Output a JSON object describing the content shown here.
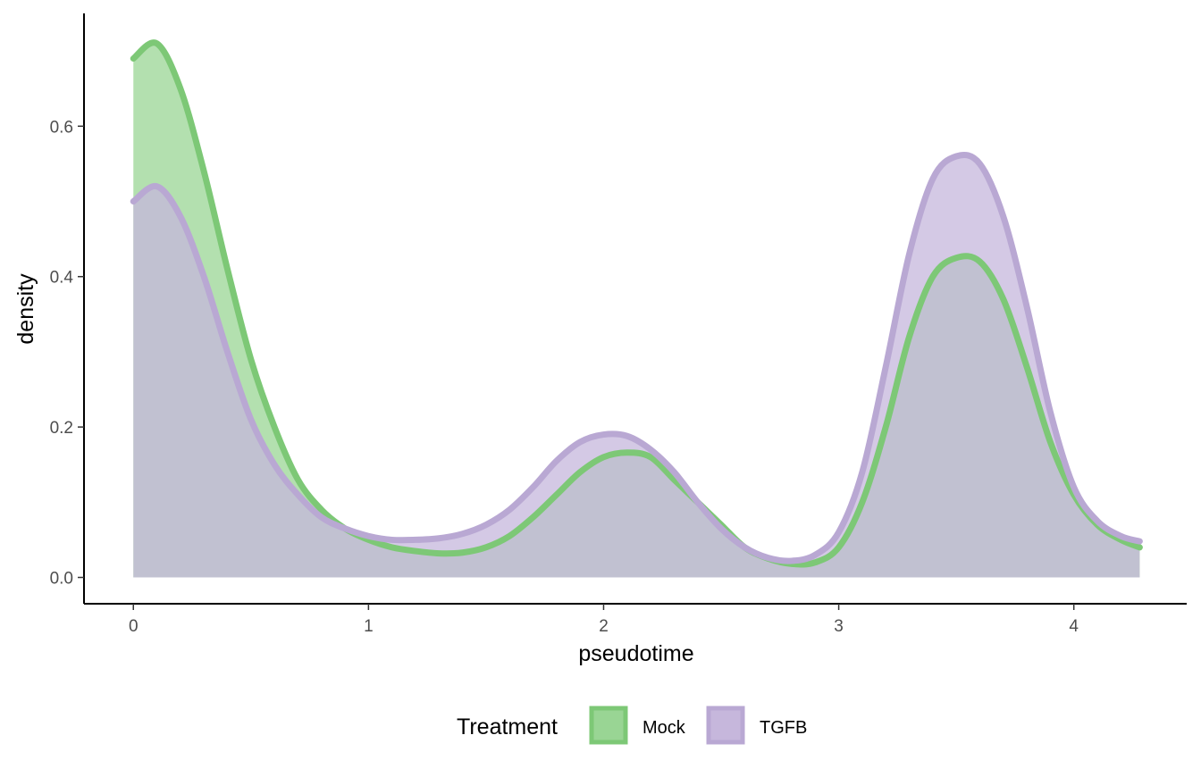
{
  "chart_data": {
    "type": "area",
    "subtype": "density",
    "xlabel": "pseudotime",
    "ylabel": "density",
    "xlim": [
      -0.21,
      4.48
    ],
    "ylim": [
      -0.035,
      0.75
    ],
    "x_ticks": [
      0,
      1,
      2,
      3,
      4
    ],
    "x_tick_labels": [
      "0",
      "1",
      "2",
      "3",
      "4"
    ],
    "y_ticks": [
      0.0,
      0.2,
      0.4,
      0.6
    ],
    "y_tick_labels": [
      "0.0",
      "0.2",
      "0.4",
      "0.6"
    ],
    "grid": false,
    "legend": {
      "title": "Treatment",
      "position": "bottom"
    },
    "series": [
      {
        "name": "Mock",
        "fill": "#99d594",
        "line": "#7dc876",
        "x": [
          0,
          0.1,
          0.2,
          0.3,
          0.4,
          0.5,
          0.6,
          0.7,
          0.8,
          0.9,
          1.0,
          1.1,
          1.2,
          1.3,
          1.4,
          1.5,
          1.6,
          1.7,
          1.8,
          1.9,
          2.0,
          2.1,
          2.2,
          2.3,
          2.4,
          2.5,
          2.6,
          2.7,
          2.8,
          2.9,
          3.0,
          3.1,
          3.2,
          3.3,
          3.4,
          3.5,
          3.6,
          3.7,
          3.8,
          3.9,
          4.0,
          4.1,
          4.2,
          4.28
        ],
        "y": [
          0.69,
          0.71,
          0.65,
          0.54,
          0.41,
          0.29,
          0.2,
          0.13,
          0.09,
          0.065,
          0.05,
          0.04,
          0.035,
          0.032,
          0.033,
          0.04,
          0.055,
          0.08,
          0.11,
          0.14,
          0.16,
          0.166,
          0.16,
          0.13,
          0.1,
          0.07,
          0.04,
          0.025,
          0.018,
          0.02,
          0.04,
          0.1,
          0.2,
          0.32,
          0.4,
          0.425,
          0.42,
          0.37,
          0.28,
          0.18,
          0.11,
          0.07,
          0.05,
          0.04
        ]
      },
      {
        "name": "TGFB",
        "fill": "#c6b7dc",
        "line": "#b9a8d3",
        "x": [
          0,
          0.1,
          0.2,
          0.3,
          0.4,
          0.5,
          0.6,
          0.7,
          0.8,
          0.9,
          1.0,
          1.1,
          1.2,
          1.3,
          1.4,
          1.5,
          1.6,
          1.7,
          1.8,
          1.9,
          2.0,
          2.1,
          2.2,
          2.3,
          2.4,
          2.5,
          2.6,
          2.7,
          2.8,
          2.9,
          3.0,
          3.1,
          3.2,
          3.3,
          3.4,
          3.5,
          3.6,
          3.7,
          3.8,
          3.9,
          4.0,
          4.1,
          4.2,
          4.28
        ],
        "y": [
          0.5,
          0.52,
          0.48,
          0.4,
          0.3,
          0.21,
          0.15,
          0.11,
          0.08,
          0.065,
          0.055,
          0.05,
          0.05,
          0.052,
          0.058,
          0.07,
          0.09,
          0.12,
          0.155,
          0.18,
          0.19,
          0.188,
          0.17,
          0.14,
          0.1,
          0.065,
          0.04,
          0.026,
          0.022,
          0.03,
          0.06,
          0.14,
          0.28,
          0.43,
          0.53,
          0.56,
          0.55,
          0.48,
          0.36,
          0.22,
          0.12,
          0.075,
          0.055,
          0.048
        ]
      }
    ]
  }
}
